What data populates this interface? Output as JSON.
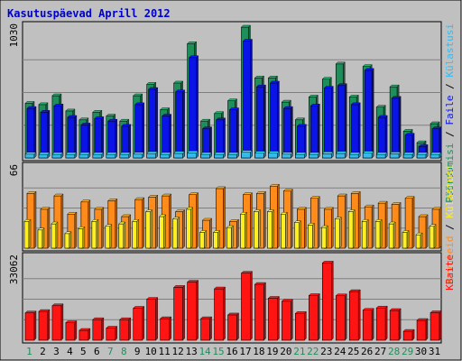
{
  "chart_data": {
    "type": "bar",
    "title": "Kasutuspäevad Aprill 2012",
    "categories": [
      "1",
      "2",
      "3",
      "4",
      "5",
      "6",
      "7",
      "8",
      "9",
      "10",
      "11",
      "12",
      "13",
      "14",
      "15",
      "16",
      "17",
      "18",
      "19",
      "20",
      "21",
      "22",
      "23",
      "24",
      "25",
      "26",
      "27",
      "28",
      "29",
      "30",
      "31"
    ],
    "weekend_days": [
      1,
      7,
      8,
      14,
      15,
      21,
      22,
      28,
      29
    ],
    "panels": [
      {
        "id": "visits",
        "ymax_label": "1030",
        "ymax": 1030,
        "legend": [
          "Pöördumisi",
          "Faile",
          "Külastusi"
        ],
        "series": [
          {
            "name": "Pöördumisi",
            "color": "#1e8f5a",
            "values": [
              430,
              420,
              490,
              370,
              300,
              360,
              330,
              290,
              490,
              580,
              380,
              590,
              900,
              290,
              350,
              450,
              1030,
              630,
              630,
              440,
              300,
              480,
              620,
              740,
              480,
              720,
              400,
              560,
              210,
              120,
              270
            ]
          },
          {
            "name": "Faile",
            "color": "#0a14e6",
            "values": [
              390,
              360,
              410,
              320,
              260,
              310,
              290,
              250,
              420,
              540,
              330,
              520,
              790,
              230,
              300,
              380,
              920,
              560,
              590,
              390,
              250,
              410,
              550,
              570,
              420,
              690,
              320,
              470,
              180,
              90,
              230
            ]
          },
          {
            "name": "Külastusi",
            "color": "#33bbee",
            "values": [
              30,
              25,
              28,
              22,
              20,
              24,
              22,
              20,
              30,
              35,
              26,
              36,
              40,
              18,
              22,
              26,
              45,
              38,
              38,
              30,
              20,
              28,
              33,
              36,
              28,
              38,
              24,
              32,
              15,
              10,
              18
            ]
          }
        ]
      },
      {
        "id": "sites",
        "ymax_label": "66",
        "ymax": 66,
        "legend": [
          "Arvuteid",
          "Külastusi"
        ],
        "series": [
          {
            "name": "Arvuteid",
            "color": "#ff8c1a",
            "values": [
              45,
              32,
              43,
              28,
              38,
              32,
              39,
              26,
              40,
              42,
              43,
              30,
              44,
              23,
              49,
              22,
              44,
              45,
              51,
              47,
              32,
              41,
              32,
              43,
              45,
              34,
              37,
              36,
              41,
              26,
              32
            ]
          },
          {
            "name": "Külastusi",
            "color": "#ffee22",
            "values": [
              22,
              15,
              20,
              12,
              16,
              22,
              18,
              20,
              22,
              30,
              26,
              24,
              32,
              13,
              13,
              17,
              28,
              30,
              30,
              28,
              21,
              19,
              17,
              24,
              30,
              22,
              22,
              20,
              13,
              11,
              18
            ]
          }
        ]
      },
      {
        "id": "bytes",
        "ymax_label": "33062",
        "ymax": 33062,
        "legend": [
          "KBaite"
        ],
        "series": [
          {
            "name": "KBaite",
            "color": "#ff1414",
            "values": [
              11000,
              11600,
              13900,
              7100,
              4000,
              8300,
              4900,
              8300,
              12900,
              16500,
              8700,
              21300,
              23400,
              8700,
              20700,
              10200,
              27000,
              22500,
              16900,
              15700,
              10800,
              18000,
              31100,
              17900,
              19600,
              12100,
              13000,
              12000,
              3600,
              8000,
              11100
            ]
          }
        ]
      }
    ]
  }
}
